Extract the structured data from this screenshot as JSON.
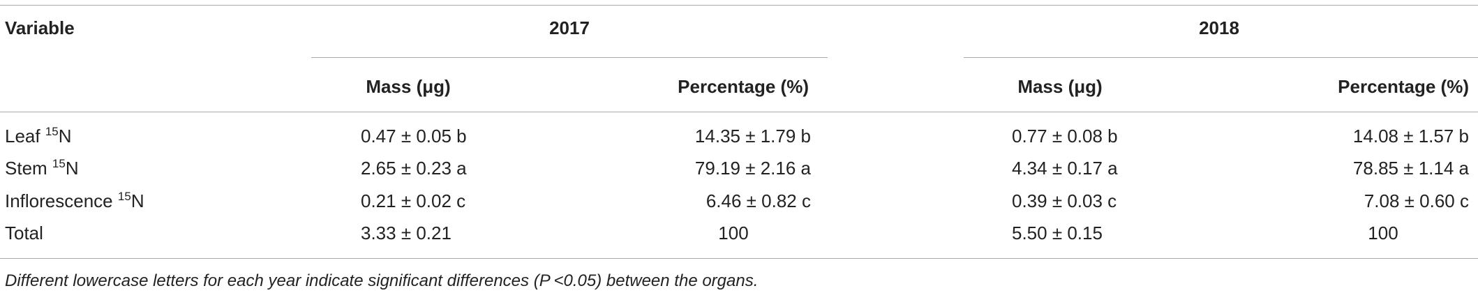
{
  "header": {
    "variable": "Variable",
    "years": [
      "2017",
      "2018"
    ],
    "columns": [
      [
        "Mass (μg)",
        "Percentage (%)"
      ],
      [
        "Mass (μg)",
        "Percentage (%)"
      ]
    ]
  },
  "table": {
    "rows": [
      {
        "label": "Leaf",
        "sup": "15",
        "element": "N",
        "cells": [
          "0.47 ± 0.05 b",
          "14.35 ± 1.79 b",
          "0.77 ± 0.08 b",
          "14.08 ± 1.57 b"
        ]
      },
      {
        "label": "Stem",
        "sup": "15",
        "element": "N",
        "cells": [
          "2.65 ± 0.23 a",
          "79.19 ± 2.16 a",
          "4.34 ± 0.17 a",
          "78.85 ± 1.14 a"
        ]
      },
      {
        "label": "Inflorescence",
        "sup": "15",
        "element": "N",
        "cells": [
          "0.21 ± 0.02 c",
          "6.46 ± 0.82 c",
          "0.39 ± 0.03 c",
          "7.08 ± 0.60 c"
        ]
      },
      {
        "label": "Total",
        "cells": [
          "3.33 ± 0.21",
          "100",
          "5.50 ± 0.15",
          "100"
        ]
      }
    ]
  },
  "footnote": "Different lowercase letters for each year indicate significant differences (P <0.05) between the organs."
}
